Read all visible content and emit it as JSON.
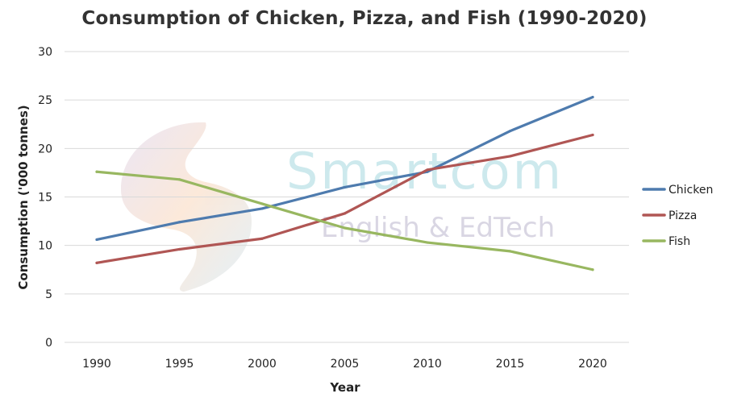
{
  "chart_data": {
    "type": "line",
    "title": "Consumption of Chicken, Pizza, and Fish (1990-2020)",
    "xlabel": "Year",
    "ylabel": "Consumption ('000 tonnes)",
    "categories": [
      "1990",
      "1995",
      "2000",
      "2005",
      "2010",
      "2015",
      "2020"
    ],
    "ylim": [
      0,
      30
    ],
    "yticks": [
      0,
      5,
      10,
      15,
      20,
      25,
      30
    ],
    "grid": true,
    "legend_position": "right",
    "series": [
      {
        "name": "Chicken",
        "color": "#4e7bae",
        "values": [
          10.6,
          12.4,
          13.8,
          16.0,
          17.6,
          21.8,
          25.3
        ]
      },
      {
        "name": "Pizza",
        "color": "#b05654",
        "values": [
          8.2,
          9.6,
          10.7,
          13.3,
          17.8,
          19.2,
          21.4
        ]
      },
      {
        "name": "Fish",
        "color": "#98b760",
        "values": [
          17.6,
          16.8,
          14.3,
          11.8,
          10.3,
          9.4,
          7.5
        ]
      }
    ]
  },
  "watermark": {
    "brand": "Smartcom",
    "tagline": "English & EdTech"
  }
}
